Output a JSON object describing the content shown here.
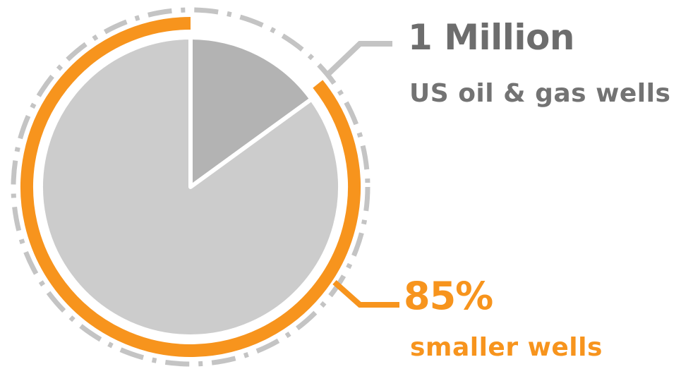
{
  "chart_data": {
    "type": "pie",
    "total": "1 Million",
    "total_label": "US oil & gas wells",
    "slices": [
      {
        "label": "smaller wells",
        "value": 85,
        "display": "85%",
        "color": "#cccccc",
        "highlight": "#f7941d"
      },
      {
        "label": "",
        "value": 15,
        "color": "#b3b3b3"
      }
    ],
    "title": "",
    "legend": "none"
  },
  "colors": {
    "accent": "#f7941d",
    "text_gray": "#6d6d6d",
    "slice_light": "#cccccc",
    "slice_dark": "#b3b3b3",
    "dash_ring": "#c4c4c4"
  }
}
